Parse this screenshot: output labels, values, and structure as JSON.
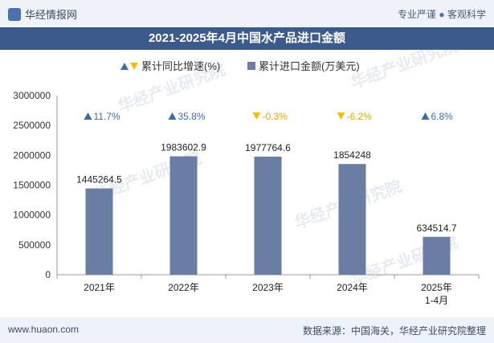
{
  "header": {
    "site_name": "华经情报网",
    "tagline_left": "专业严谨",
    "tagline_right": "客观科学"
  },
  "footer": {
    "url": "www.huaon.com",
    "source": "数据来源：中国海关，华经产业研究院整理"
  },
  "watermark": "华经产业研究院",
  "colors": {
    "bar": "#6a7ea3",
    "up": "#3d6ea3",
    "down": "#f2c200",
    "title_bg": "#3d5a8c"
  },
  "chart_data": {
    "type": "bar",
    "title": "2021-2025年4月中国水产品进口金额",
    "categories": [
      "2021年",
      "2022年",
      "2023年",
      "2024年",
      "2025年\n1-4月"
    ],
    "series": [
      {
        "name": "累计进口金额(万美元)",
        "values": [
          1445264.5,
          1983602.9,
          1977764.6,
          1854248,
          634514.7
        ],
        "labels": [
          "1445264.5",
          "1983602.9",
          "1977764.6",
          "1854248",
          "634514.7"
        ]
      },
      {
        "name": "累计同比增速(%)",
        "values": [
          11.7,
          35.8,
          -0.3,
          -6.2,
          6.8
        ],
        "labels": [
          "11.7%",
          "35.8%",
          "-0.3%",
          "-6.2%",
          "6.8%"
        ]
      }
    ],
    "yticks": [
      "0",
      "500000",
      "1000000",
      "1500000",
      "2000000",
      "2500000",
      "3000000"
    ],
    "ylim": [
      0,
      3000000
    ],
    "grid": false,
    "legend": "top-center"
  }
}
